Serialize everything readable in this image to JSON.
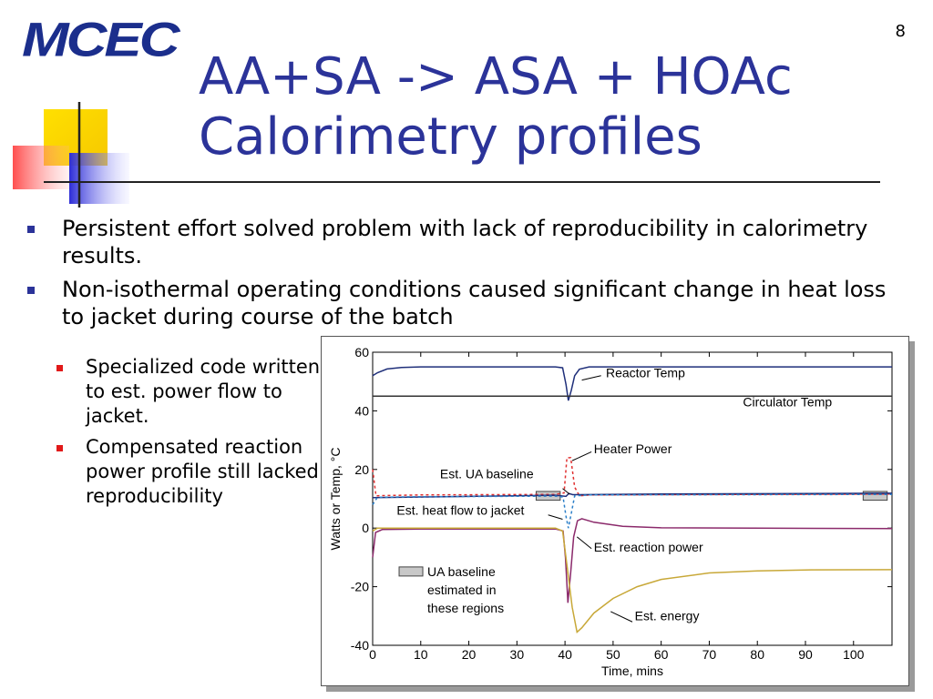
{
  "logo": {
    "text": "MCEC"
  },
  "slide_number": "8",
  "title": {
    "line1": "AA+SA -> ASA + HOAc",
    "line2": "Calorimetry profiles"
  },
  "bullets": [
    "Persistent effort solved problem with lack of reproducibility in calorimetry results.",
    "Non-isothermal operating conditions caused significant change in heat loss to jacket during course of the batch"
  ],
  "subbullets": [
    "Specialized code written to est. power flow to jacket.",
    "Compensated reaction power profile still lacked reproducibility"
  ],
  "colors": {
    "title": "#2b3399",
    "bullet": "#2b3399",
    "subbullet": "#e11919",
    "logo": "#1b2e8c"
  },
  "chart_data": {
    "type": "line",
    "xlabel": "Time, mins",
    "ylabel": "Watts or Temp, °C",
    "xlim": [
      0,
      108
    ],
    "ylim": [
      -40,
      60
    ],
    "xticks": [
      0,
      10,
      20,
      30,
      40,
      50,
      60,
      70,
      80,
      90,
      100
    ],
    "yticks": [
      -40,
      -20,
      0,
      20,
      40,
      60
    ],
    "grid": false,
    "series": [
      {
        "name": "Reactor Temp",
        "color": "#1f2f7a",
        "dash": "",
        "points": [
          [
            0,
            52
          ],
          [
            1,
            53
          ],
          [
            3,
            54.3
          ],
          [
            6,
            54.8
          ],
          [
            10,
            55
          ],
          [
            38,
            55
          ],
          [
            39.5,
            54.7
          ],
          [
            40.2,
            49
          ],
          [
            40.7,
            43.5
          ],
          [
            41.3,
            47
          ],
          [
            42,
            52
          ],
          [
            43,
            54.2
          ],
          [
            45,
            55
          ],
          [
            60,
            55
          ],
          [
            108,
            55
          ]
        ]
      },
      {
        "name": "Circulator Temp",
        "color": "#333333",
        "dash": "",
        "points": [
          [
            0,
            45
          ],
          [
            108,
            45
          ]
        ]
      },
      {
        "name": "Heater Power",
        "color": "#e03030",
        "dash": "3,3",
        "points": [
          [
            0,
            20
          ],
          [
            0.7,
            11
          ],
          [
            2,
            11.1
          ],
          [
            10,
            11.3
          ],
          [
            38,
            11.5
          ],
          [
            39.8,
            12
          ],
          [
            40.4,
            24
          ],
          [
            41.2,
            24
          ],
          [
            42,
            14
          ],
          [
            43,
            11
          ],
          [
            45,
            11.3
          ],
          [
            60,
            11.4
          ],
          [
            108,
            11.6
          ]
        ]
      },
      {
        "name": "Est. UA baseline",
        "color": "#1f2f7a",
        "dash": "",
        "points": [
          [
            0,
            10.4
          ],
          [
            20,
            10.8
          ],
          [
            38,
            11.2
          ],
          [
            40.2,
            10.8
          ],
          [
            40.8,
            11.8
          ],
          [
            41.6,
            11.4
          ],
          [
            60,
            11.6
          ],
          [
            108,
            11.9
          ]
        ]
      },
      {
        "name": "Est. heat flow to jacket",
        "color": "#2b7fc8",
        "dash": "3,3",
        "points": [
          [
            0,
            8
          ],
          [
            1,
            10.5
          ],
          [
            10,
            10.7
          ],
          [
            38,
            10.9
          ],
          [
            39.6,
            10.6
          ],
          [
            40.2,
            4
          ],
          [
            40.7,
            0
          ],
          [
            41.3,
            5
          ],
          [
            42,
            11
          ],
          [
            45,
            11.3
          ],
          [
            108,
            11.5
          ]
        ]
      },
      {
        "name": "Est. reaction power",
        "color": "#8b2a6b",
        "dash": "",
        "points": [
          [
            0,
            -10
          ],
          [
            0.6,
            -1.5
          ],
          [
            2,
            -0.5
          ],
          [
            10,
            -0.3
          ],
          [
            38,
            -0.3
          ],
          [
            39.6,
            -1
          ],
          [
            40.1,
            -10
          ],
          [
            40.6,
            -25.5
          ],
          [
            41.2,
            -15
          ],
          [
            41.8,
            -3
          ],
          [
            42.6,
            2.5
          ],
          [
            43.5,
            3.2
          ],
          [
            46,
            2
          ],
          [
            52,
            0.6
          ],
          [
            60,
            0.1
          ],
          [
            108,
            -0.2
          ]
        ]
      },
      {
        "name": "Est. energy",
        "color": "#c8a838",
        "dash": "",
        "points": [
          [
            0,
            -1
          ],
          [
            1,
            0
          ],
          [
            38,
            0
          ],
          [
            39.5,
            -1
          ],
          [
            40.5,
            -14
          ],
          [
            41.5,
            -27
          ],
          [
            42.5,
            -35.5
          ],
          [
            43.5,
            -34
          ],
          [
            46,
            -29
          ],
          [
            50,
            -24
          ],
          [
            55,
            -20
          ],
          [
            60,
            -17.5
          ],
          [
            70,
            -15.3
          ],
          [
            80,
            -14.6
          ],
          [
            90,
            -14.3
          ],
          [
            108,
            -14.2
          ]
        ]
      }
    ],
    "baseline_regions": [
      [
        34,
        39
      ],
      [
        102,
        107
      ]
    ],
    "annotations": [
      {
        "text": "Reactor Temp",
        "x": 48.5,
        "y": 51.5
      },
      {
        "text": "Circulator Temp",
        "x": 77,
        "y": 41.5
      },
      {
        "text": "Heater Power",
        "x": 46,
        "y": 25.5
      },
      {
        "text": "Est. UA baseline",
        "x": 14,
        "y": 17
      },
      {
        "text": "Est. heat flow to jacket",
        "x": 5,
        "y": 4.5
      },
      {
        "text": "Est. reaction power",
        "x": 46,
        "y": -8
      },
      {
        "text": "Est. energy",
        "x": 54.5,
        "y": -31.5
      }
    ],
    "legend": {
      "text_lines": [
        "UA baseline",
        "estimated in",
        "these regions"
      ]
    }
  }
}
